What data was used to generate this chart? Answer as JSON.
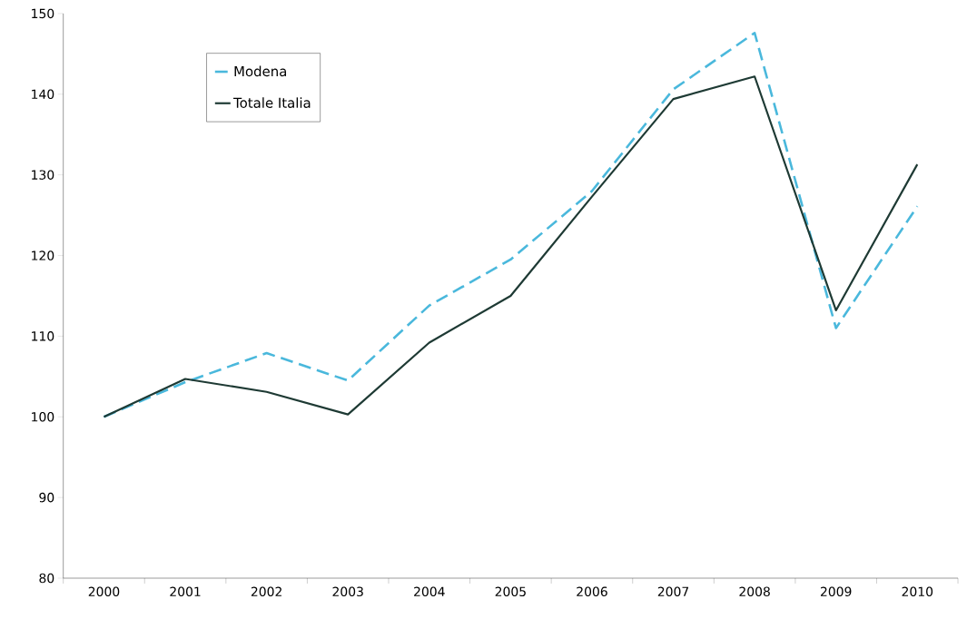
{
  "chart_data": {
    "type": "line",
    "categories": [
      "2000",
      "2001",
      "2002",
      "2003",
      "2004",
      "2005",
      "2006",
      "2007",
      "2008",
      "2009",
      "2010"
    ],
    "series": [
      {
        "name": "Modena",
        "color": "#4ab8dc",
        "line_style": "dashed",
        "values": [
          100,
          104.3,
          107.9,
          104.5,
          113.8,
          119.5,
          128,
          140.6,
          147.6,
          111,
          126.1
        ]
      },
      {
        "name": "Totale Italia",
        "color": "#1e3a34",
        "line_style": "solid",
        "values": [
          100,
          104.7,
          103.1,
          100.3,
          109.2,
          115,
          127.3,
          139.4,
          142.2,
          113.2,
          131.3
        ]
      }
    ],
    "ylim": [
      80,
      150
    ],
    "yticks": [
      80,
      90,
      100,
      110,
      120,
      130,
      140,
      150
    ],
    "grid": false,
    "legend": "top left",
    "marker": "none"
  }
}
